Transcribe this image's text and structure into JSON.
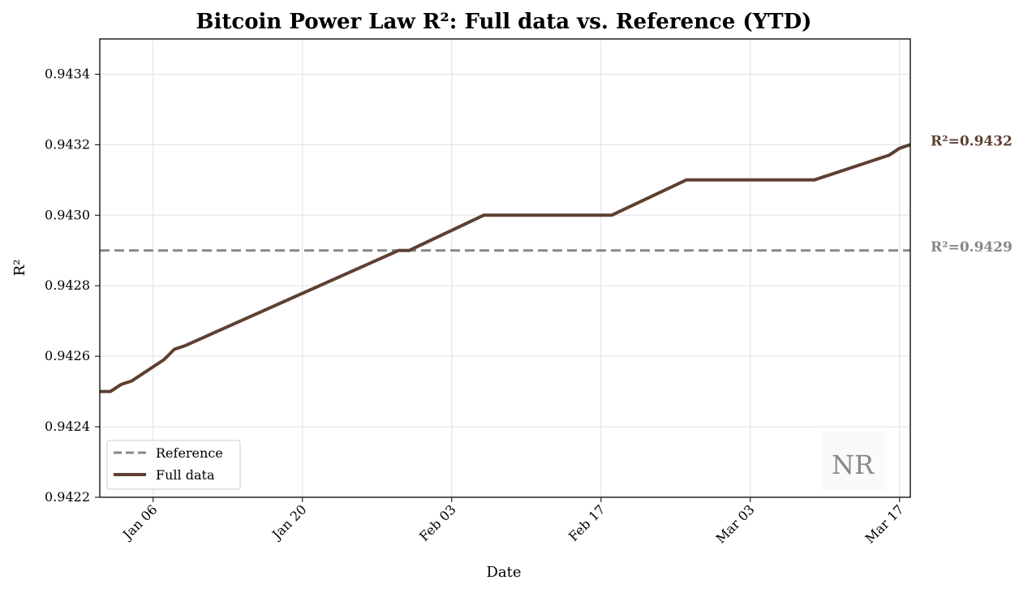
{
  "colors": {
    "full_data": "#5d4033",
    "reference": "#888888",
    "grid": "#e0e0e0",
    "watermark": "#888888"
  },
  "watermark": "NR",
  "chart_data": {
    "type": "line",
    "title": "Bitcoin Power Law R²: Full data vs. Reference (YTD)",
    "xlabel": "Date",
    "ylabel": "R²",
    "x_type": "date",
    "xlim": [
      "2025-01-01",
      "2025-03-18"
    ],
    "ylim": [
      0.9422,
      0.9435
    ],
    "xticks": [
      "2025-01-06",
      "2025-01-20",
      "2025-02-03",
      "2025-02-17",
      "2025-03-03",
      "2025-03-17"
    ],
    "xtick_labels": [
      "Jan 06",
      "Jan 20",
      "Feb 03",
      "Feb 17",
      "Mar 03",
      "Mar 17"
    ],
    "yticks": [
      0.9422,
      0.9424,
      0.9426,
      0.9428,
      0.943,
      0.9432,
      0.9434
    ],
    "ytick_labels": [
      "0.9422",
      "0.9424",
      "0.9426",
      "0.9428",
      "0.9430",
      "0.9432",
      "0.9434"
    ],
    "grid": true,
    "legend_position": "lower-left",
    "series": [
      {
        "name": "Reference",
        "style": "dashed",
        "x": [
          "2025-01-01",
          "2025-03-18"
        ],
        "y": [
          0.9429,
          0.9429
        ],
        "end_label": "R²=0.9429"
      },
      {
        "name": "Full data",
        "style": "solid",
        "x": [
          "2025-01-01",
          "2025-01-02",
          "2025-01-03",
          "2025-01-04",
          "2025-01-07",
          "2025-01-08",
          "2025-01-09",
          "2025-01-29",
          "2025-01-30",
          "2025-02-06",
          "2025-02-18",
          "2025-02-25",
          "2025-03-09",
          "2025-03-16",
          "2025-03-17",
          "2025-03-18"
        ],
        "y": [
          0.9425,
          0.9425,
          0.94252,
          0.94253,
          0.94259,
          0.94262,
          0.94263,
          0.9429,
          0.9429,
          0.943,
          0.943,
          0.9431,
          0.9431,
          0.94317,
          0.94319,
          0.9432
        ],
        "end_label": "R²=0.9432"
      }
    ]
  }
}
